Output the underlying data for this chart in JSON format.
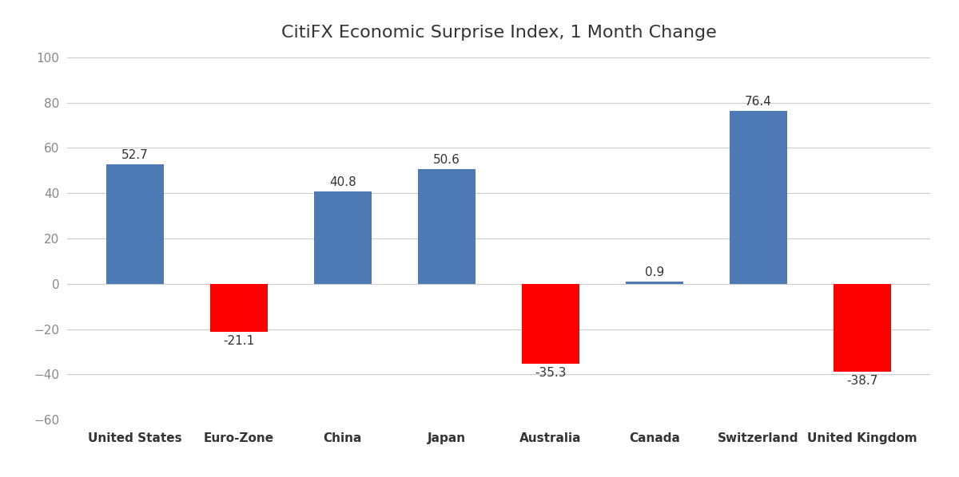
{
  "title": "CitiFX Economic Surprise Index, 1 Month Change",
  "categories": [
    "United States",
    "Euro-Zone",
    "China",
    "Japan",
    "Australia",
    "Canada",
    "Switzerland",
    "United Kingdom"
  ],
  "values": [
    52.7,
    -21.1,
    40.8,
    50.6,
    -35.3,
    0.9,
    76.4,
    -38.7
  ],
  "bar_colors_positive": "#4d7ab5",
  "bar_colors_negative": "#ff0000",
  "ylim": [
    -60,
    100
  ],
  "yticks": [
    -60,
    -40,
    -20,
    0,
    20,
    40,
    60,
    80,
    100
  ],
  "background_color": "#ffffff",
  "grid_color": "#cccccc",
  "title_fontsize": 16,
  "label_fontsize": 11,
  "tick_fontsize": 11,
  "bar_width": 0.55,
  "annotation_fontsize": 11,
  "annotation_color": "#333333"
}
